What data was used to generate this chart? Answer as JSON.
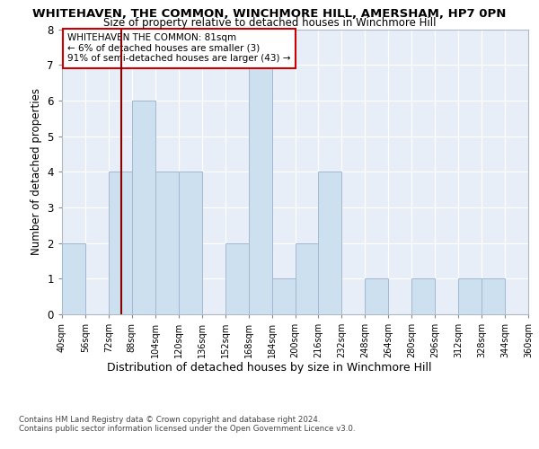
{
  "title": "WHITEHAVEN, THE COMMON, WINCHMORE HILL, AMERSHAM, HP7 0PN",
  "subtitle": "Size of property relative to detached houses in Winchmore Hill",
  "xlabel": "Distribution of detached houses by size in Winchmore Hill",
  "ylabel": "Number of detached properties",
  "bin_starts": [
    40,
    56,
    72,
    88,
    104,
    120,
    136,
    152,
    168,
    184,
    200,
    216,
    232,
    248,
    264,
    280,
    296,
    312,
    328,
    344
  ],
  "bin_width": 16,
  "bar_heights": [
    2,
    0,
    4,
    6,
    4,
    4,
    0,
    2,
    7,
    1,
    2,
    4,
    0,
    1,
    0,
    1,
    0,
    1,
    1,
    0
  ],
  "bar_color": "#cce0f0",
  "bar_edge_color": "#a0b8d0",
  "property_size": 81,
  "property_line_color": "#8b0000",
  "annotation_text": "WHITEHAVEN THE COMMON: 81sqm\n← 6% of detached houses are smaller (3)\n91% of semi-detached houses are larger (43) →",
  "annotation_box_color": "#ffffff",
  "annotation_box_edge": "#cc0000",
  "ylim": [
    0,
    8
  ],
  "yticks": [
    0,
    1,
    2,
    3,
    4,
    5,
    6,
    7,
    8
  ],
  "tick_labels": [
    "40sqm",
    "56sqm",
    "72sqm",
    "88sqm",
    "104sqm",
    "120sqm",
    "136sqm",
    "152sqm",
    "168sqm",
    "184sqm",
    "200sqm",
    "216sqm",
    "232sqm",
    "248sqm",
    "264sqm",
    "280sqm",
    "296sqm",
    "312sqm",
    "328sqm",
    "344sqm",
    "360sqm"
  ],
  "background_color": "#e8eef8",
  "grid_color": "#ffffff",
  "footer_line1": "Contains HM Land Registry data © Crown copyright and database right 2024.",
  "footer_line2": "Contains public sector information licensed under the Open Government Licence v3.0."
}
